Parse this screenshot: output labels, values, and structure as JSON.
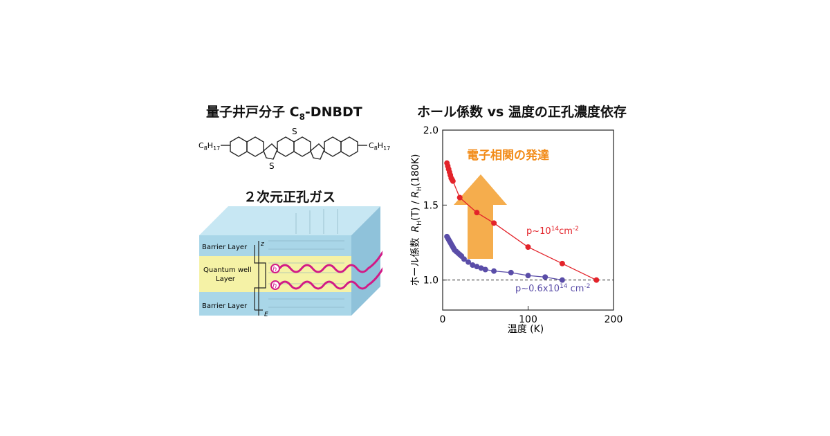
{
  "left": {
    "molecule_title": {
      "main": "量子井戸分子 C",
      "sub": "8",
      "rest": "-DNBDT"
    },
    "molecule": {
      "sulfur": "S",
      "substituent": "C",
      "sub_a": "8",
      "h": "H",
      "sub_b": "17"
    },
    "gas_title": "２次元正孔ガス",
    "layers": {
      "top": "Barrier Layer",
      "middle_1": "Quantum well",
      "middle_2": "Layer",
      "bottom": "Barrier Layer",
      "z_axis": "z",
      "e_axis": "E",
      "hole": "h"
    },
    "colors": {
      "barrier": "#a9d6e8",
      "well": "#f5f2a6",
      "wave": "#d21a86"
    }
  },
  "chart_title": "ホール係数 vs 温度の正孔濃度依存",
  "annotation": "電子相関の発達",
  "axis_text": {
    "y_jp": "ホール係数",
    "y_rh1": "R",
    "y_h1": "H",
    "y_mid": "(T) / ",
    "y_rh2": "R",
    "y_h2": "H",
    "y_end": "(180K)",
    "x": "温度 (K)"
  },
  "series_labels": {
    "red": {
      "base": "p~10",
      "exp": "14",
      "unit": "cm",
      "unit_exp": "-2"
    },
    "blue": {
      "base": "p~0.6x10",
      "exp": "14",
      "unit": " cm",
      "unit_exp": "-2"
    }
  },
  "chart_data": {
    "type": "line",
    "xlim": [
      0,
      200
    ],
    "ylim": [
      0.8,
      2.0
    ],
    "xticks": [
      0,
      100,
      200
    ],
    "yticks": [
      1.0,
      1.5,
      2.0
    ],
    "ytick_labels": [
      "1.0",
      "1.5",
      "2.0"
    ],
    "reference_line": 1.0,
    "grid": false,
    "series": [
      {
        "color": "#e3232a",
        "x": [
          5,
          6,
          7,
          8,
          9,
          10,
          11,
          12,
          20,
          40,
          60,
          100,
          140,
          180
        ],
        "y": [
          1.78,
          1.76,
          1.74,
          1.72,
          1.7,
          1.68,
          1.67,
          1.66,
          1.55,
          1.45,
          1.38,
          1.22,
          1.11,
          1.0
        ]
      },
      {
        "color": "#5a4da8",
        "x": [
          5,
          6,
          7,
          8,
          9,
          10,
          11,
          12,
          13,
          14,
          16,
          18,
          20,
          22,
          25,
          30,
          35,
          40,
          45,
          50,
          60,
          80,
          100,
          120,
          140
        ],
        "y": [
          1.29,
          1.28,
          1.27,
          1.26,
          1.25,
          1.24,
          1.23,
          1.22,
          1.21,
          1.2,
          1.19,
          1.18,
          1.17,
          1.16,
          1.14,
          1.12,
          1.1,
          1.09,
          1.08,
          1.07,
          1.06,
          1.05,
          1.03,
          1.02,
          1.0
        ]
      }
    ]
  }
}
